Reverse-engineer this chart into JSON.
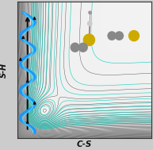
{
  "xlabel": "C-S",
  "ylabel": "S-H",
  "bg_color": "#f0f0f0",
  "helix_color": "#1199ff",
  "helix_color2": "#55ddff",
  "arrow_color": "#111111",
  "contour_color": "#222222",
  "cyan_color": "#00ccbb",
  "S_color": "#ccaa00",
  "C_color": "#888888",
  "H_color": "#bbbbbb",
  "fig_bg": "#cccccc"
}
